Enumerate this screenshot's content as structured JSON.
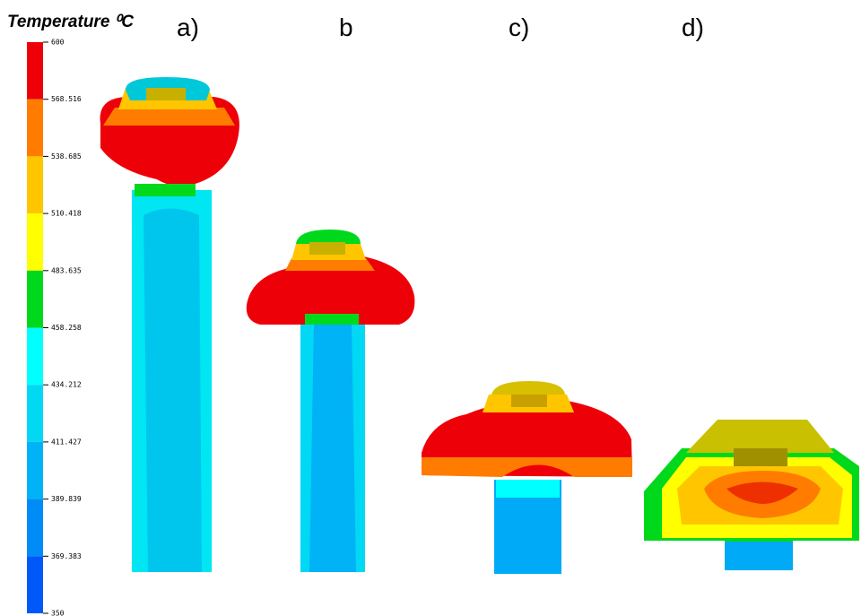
{
  "legend": {
    "title": "Temperature ⁰C",
    "ticks": [
      600,
      568.516,
      538.685,
      510.418,
      483.635,
      458.258,
      434.212,
      411.427,
      389.839,
      369.383,
      350
    ],
    "colors": [
      "#ee0008",
      "#ff7c00",
      "#ffc600",
      "#ffff00",
      "#00d81c",
      "#00ffff",
      "#00d8f4",
      "#00b2f6",
      "#008cf6",
      "#0058f8",
      "#0000ee"
    ]
  },
  "panels": [
    {
      "label": "a)"
    },
    {
      "label": "b"
    },
    {
      "label": "c)"
    },
    {
      "label": "d)"
    }
  ]
}
